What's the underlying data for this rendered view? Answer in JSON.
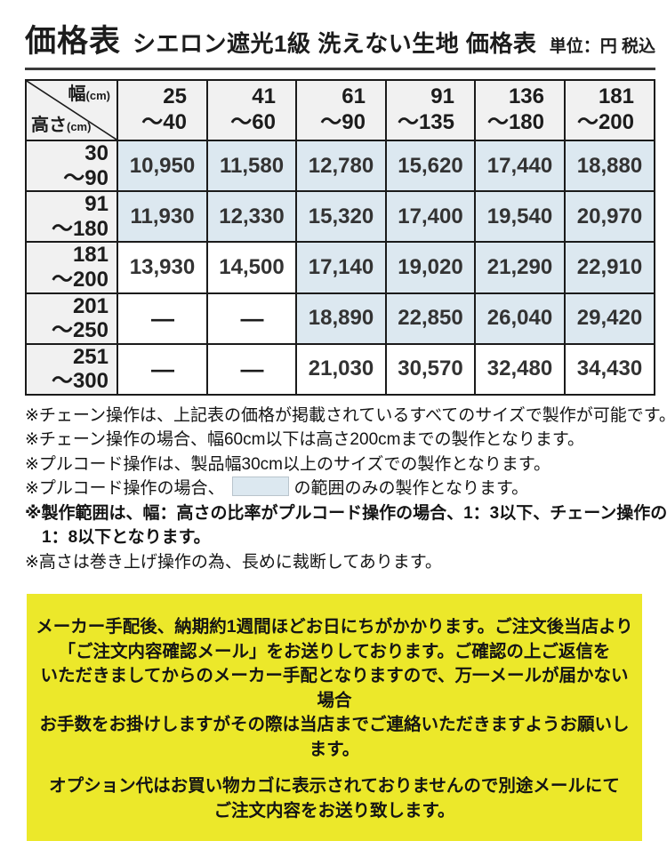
{
  "page": {
    "title": "価格表",
    "subtitle": "シエロン遮光1級 洗えない生地 価格表",
    "unit_label": "単位：円 税込"
  },
  "table": {
    "corner": {
      "width_label": "幅",
      "height_label": "高さ",
      "unit": "(cm)"
    },
    "columns": [
      [
        "25",
        "～40"
      ],
      [
        "41",
        "～60"
      ],
      [
        "61",
        "～90"
      ],
      [
        "91",
        "～135"
      ],
      [
        "136",
        "～180"
      ],
      [
        "181",
        "～200"
      ]
    ],
    "rows": [
      {
        "height": [
          "30",
          "～90"
        ],
        "values": [
          "10,950",
          "11,580",
          "12,780",
          "15,620",
          "17,440",
          "18,880"
        ],
        "highlighted": [
          true,
          true,
          true,
          true,
          true,
          true
        ]
      },
      {
        "height": [
          "91",
          "～180"
        ],
        "values": [
          "11,930",
          "12,330",
          "15,320",
          "17,400",
          "19,540",
          "20,970"
        ],
        "highlighted": [
          true,
          true,
          true,
          true,
          true,
          true
        ]
      },
      {
        "height": [
          "181",
          "～200"
        ],
        "values": [
          "13,930",
          "14,500",
          "17,140",
          "19,020",
          "21,290",
          "22,910"
        ],
        "highlighted": [
          false,
          false,
          true,
          true,
          true,
          true
        ]
      },
      {
        "height": [
          "201",
          "～250"
        ],
        "values": [
          "—",
          "—",
          "18,890",
          "22,850",
          "26,040",
          "29,420"
        ],
        "highlighted": [
          false,
          false,
          true,
          true,
          true,
          true
        ]
      },
      {
        "height": [
          "251",
          "～300"
        ],
        "values": [
          "—",
          "—",
          "21,030",
          "30,570",
          "32,480",
          "34,430"
        ],
        "highlighted": [
          false,
          false,
          false,
          false,
          false,
          false
        ]
      }
    ],
    "highlight_color": "#dce8f0",
    "not_available_symbol": "—"
  },
  "notes": {
    "note1": "※チェーン操作は、上記表の価格が掲載されているすべてのサイズで製作が可能です。",
    "note2": "※チェーン操作の場合、幅60cm以下は高さ200cmまでの製作となります。",
    "note3": "※プルコード操作は、製品幅30cm以上のサイズでの製作となります。",
    "note4_before": "※プルコード操作の場合、",
    "note4_after": "の範囲のみの製作となります。",
    "note5_line1": "※製作範囲は、幅：高さの比率がプルコード操作の場合、1：3以下、チェーン操作の場合、",
    "note5_line2": "1：8以下となります。",
    "note6": "※高さは巻き上げ操作の為、長めに裁断してあります。"
  },
  "notice_box": {
    "background": "#ece82a",
    "paragraph1": [
      "メーカー手配後、納期約1週間ほどお日にちがかかります。ご注文後当店より",
      "「ご注文内容確認メール」をお送りしております。ご確認の上ご返信を",
      "いただきましてからのメーカー手配となりますので、万一メールが届かない場合",
      "お手数をお掛けしますがその際は当店までご連絡いただきますようお願いします。"
    ],
    "paragraph2": [
      "オプション代はお買い物カゴに表示されておりませんので別途メールにて",
      "ご注文内容をお送り致します。"
    ]
  }
}
